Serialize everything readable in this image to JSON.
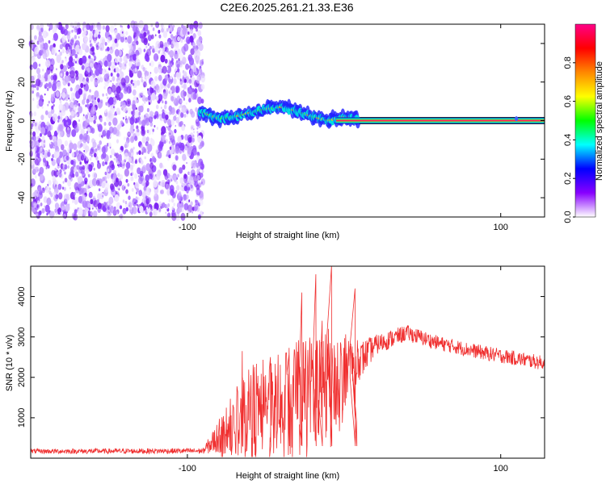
{
  "title": "C2E6.2025.261.21.33.E36",
  "chart_data": [
    {
      "type": "heatmap",
      "xlabel": "Height of straight line (km)",
      "ylabel": "Frequency (Hz)",
      "xlim": [
        -200,
        128
      ],
      "ylim": [
        -50,
        50
      ],
      "xticks": [
        -100,
        100
      ],
      "xtick_labels": [
        "-100",
        "100"
      ],
      "yticks": [
        -40,
        -20,
        0,
        20,
        40
      ],
      "ytick_labels": [
        "-40",
        "-20",
        "0",
        "20",
        "40"
      ],
      "noise_region_km": [
        -200,
        -93
      ],
      "signal_trace": [
        {
          "x": -92,
          "y": 5
        },
        {
          "x": -80,
          "y": 1
        },
        {
          "x": -70,
          "y": 2
        },
        {
          "x": -60,
          "y": 4
        },
        {
          "x": -50,
          "y": 6
        },
        {
          "x": -40,
          "y": 7
        },
        {
          "x": -30,
          "y": 5
        },
        {
          "x": -20,
          "y": 2
        },
        {
          "x": -10,
          "y": 0
        },
        {
          "x": 0,
          "y": 2
        },
        {
          "x": 10,
          "y": 0
        },
        {
          "x": 128,
          "y": 0
        }
      ],
      "colorbar": {
        "label": "Normalized spectral amplitude",
        "range": [
          0,
          1
        ],
        "ticks": [
          0.0,
          0.2,
          0.4,
          0.6,
          0.8
        ],
        "tick_labels": [
          "0.0",
          "0.2",
          "0.4",
          "0.6",
          "0.8"
        ],
        "colors": [
          "#ffffff",
          "#8800ff",
          "#0000ff",
          "#00ffff",
          "#00ff00",
          "#ffff00",
          "#ff8800",
          "#ff0000",
          "#ff0088"
        ]
      }
    },
    {
      "type": "line",
      "xlabel": "Height of straight line (km)",
      "ylabel": "SNR (10 * v/v)",
      "xlim": [
        -200,
        128
      ],
      "ylim": [
        0,
        4750
      ],
      "xticks": [
        -100,
        100
      ],
      "xtick_labels": [
        "-100",
        "100"
      ],
      "yticks": [
        1000,
        2000,
        3000,
        4000
      ],
      "ytick_labels": [
        "1000",
        "2000",
        "3000",
        "4000"
      ],
      "color": "#f03030",
      "series_envelope": [
        {
          "x": -200,
          "base": 170,
          "amp": 60
        },
        {
          "x": -90,
          "base": 180,
          "amp": 70
        },
        {
          "x": -78,
          "base": 600,
          "amp": 500
        },
        {
          "x": -60,
          "base": 1200,
          "amp": 1200
        },
        {
          "x": -40,
          "base": 1400,
          "amp": 1200
        },
        {
          "x": -20,
          "base": 1800,
          "amp": 1500
        },
        {
          "x": -5,
          "base": 2000,
          "amp": 1200
        },
        {
          "x": 10,
          "base": 2400,
          "amp": 500
        },
        {
          "x": 20,
          "base": 2800,
          "amp": 250
        },
        {
          "x": 40,
          "base": 3100,
          "amp": 200
        },
        {
          "x": 60,
          "base": 2850,
          "amp": 180
        },
        {
          "x": 90,
          "base": 2600,
          "amp": 180
        },
        {
          "x": 128,
          "base": 2350,
          "amp": 180
        }
      ],
      "spikes": [
        {
          "x": -65,
          "y": 2650
        },
        {
          "x": -47,
          "y": 2500
        },
        {
          "x": -35,
          "y": 2600
        },
        {
          "x": -27,
          "y": 4100
        },
        {
          "x": -18,
          "y": 4550
        },
        {
          "x": -14,
          "y": 3400
        },
        {
          "x": -8,
          "y": 4750
        },
        {
          "x": 7,
          "y": 4200
        },
        {
          "x": 8,
          "y": 900
        }
      ]
    }
  ]
}
